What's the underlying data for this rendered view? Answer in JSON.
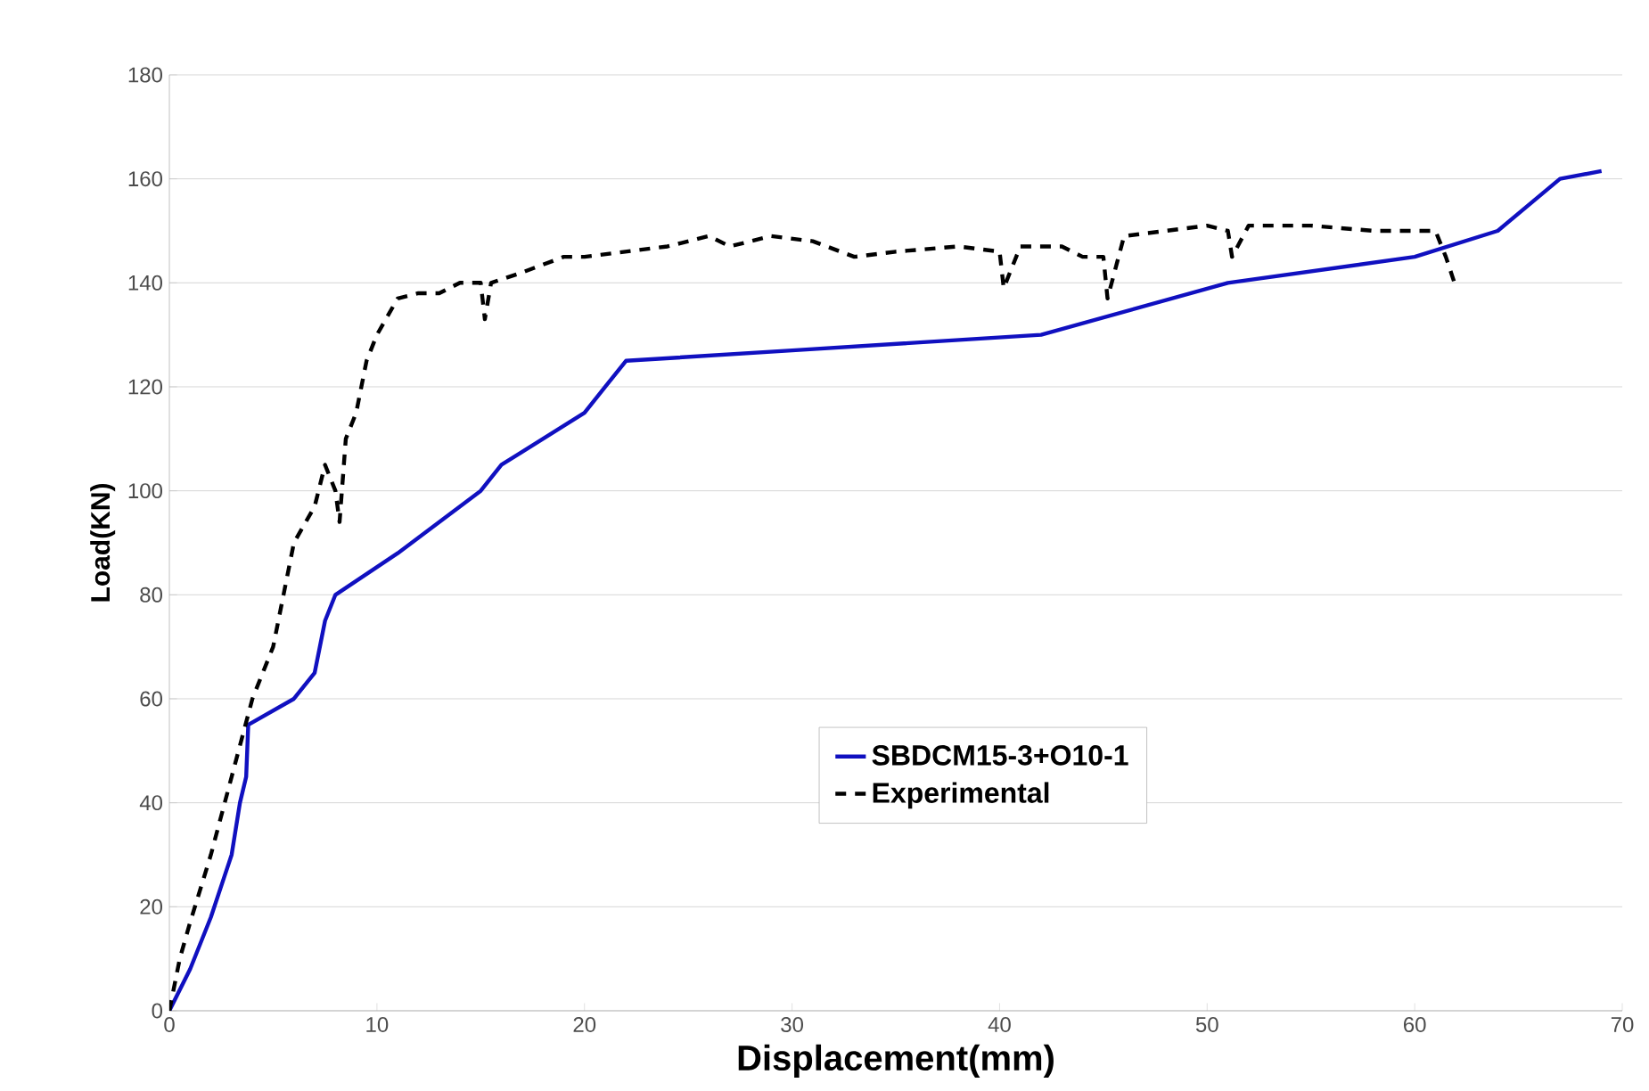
{
  "chart_data": {
    "type": "line",
    "xlabel": "Displacement(mm)",
    "ylabel": "Load(KN)",
    "xlim": [
      0,
      70
    ],
    "ylim": [
      0,
      180
    ],
    "xticks": [
      0,
      10,
      20,
      30,
      40,
      50,
      60,
      70
    ],
    "yticks": [
      0,
      20,
      40,
      60,
      80,
      100,
      120,
      140,
      160,
      180
    ],
    "grid": "y",
    "legend": "bottom",
    "marker": "none",
    "series": [
      {
        "name": "SBDCM15-3+O10-1",
        "color": "#1010c0",
        "line_style": "solid",
        "x": [
          0,
          1,
          2,
          3,
          3.4,
          3.7,
          3.8,
          6,
          7,
          7.5,
          8,
          11,
          14,
          15,
          16,
          20,
          21,
          22,
          30,
          42,
          51,
          60,
          64,
          67,
          69
        ],
        "values": [
          0,
          8,
          18,
          30,
          40,
          45,
          55,
          60,
          65,
          75,
          80,
          88,
          97,
          100,
          105,
          115,
          120,
          125,
          127,
          130,
          140,
          145,
          150,
          160,
          161.5
        ]
      },
      {
        "name": "Experimental",
        "color": "#000000",
        "line_style": "dashed",
        "x": [
          0,
          0.5,
          1,
          2,
          3,
          4,
          5,
          5.5,
          6,
          7,
          7.5,
          8,
          8.2,
          8.5,
          9,
          9.5,
          10,
          11,
          12,
          13,
          14,
          15,
          15.2,
          15.5,
          17,
          19,
          20,
          22,
          24,
          26,
          27,
          29,
          31,
          33,
          35,
          38,
          40,
          40.2,
          41,
          43,
          44,
          45,
          45.2,
          46,
          50,
          51,
          51.2,
          52,
          55,
          58,
          61,
          61.5,
          62
        ],
        "values": [
          0,
          10,
          17,
          30,
          45,
          60,
          70,
          80,
          90,
          97,
          105,
          100,
          94,
          110,
          115,
          125,
          130,
          137,
          138,
          138,
          140,
          140,
          133,
          140,
          142,
          145,
          145,
          146,
          147,
          149,
          147,
          149,
          148,
          145,
          146,
          147,
          146,
          139,
          147,
          147,
          145,
          145,
          137,
          149,
          151,
          150,
          145,
          151,
          151,
          150,
          150,
          145,
          139
        ]
      }
    ]
  }
}
